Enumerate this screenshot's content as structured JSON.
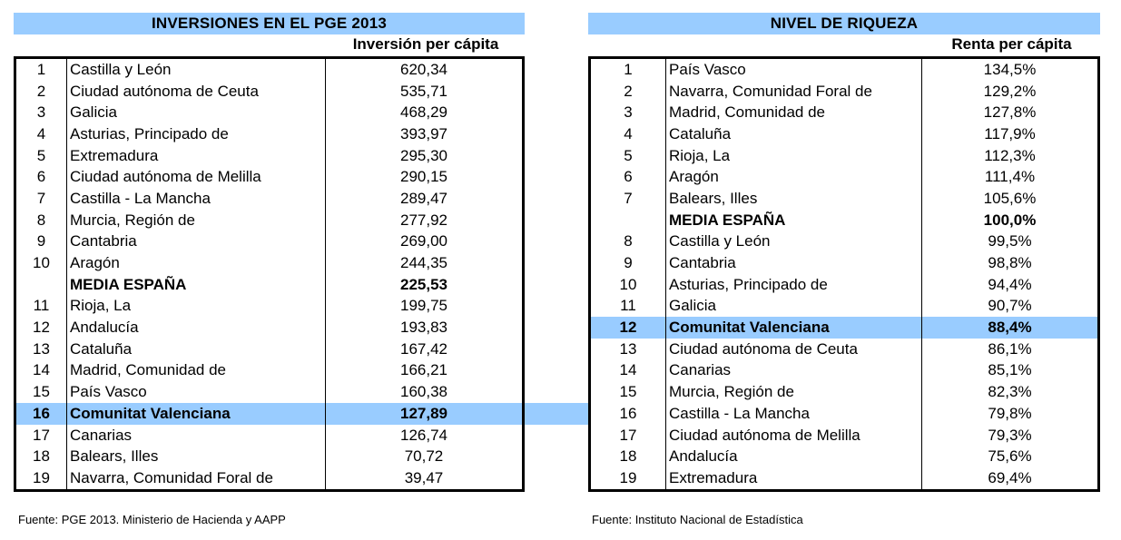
{
  "chart_data": [
    {
      "type": "table",
      "title": "INVERSIONES EN EL PGE 2013",
      "column_header": "Inversión per cápita",
      "rows": [
        {
          "rank": "1",
          "name": "Castilla y León",
          "value": "620,34"
        },
        {
          "rank": "2",
          "name": "Ciudad autónoma de Ceuta",
          "value": "535,71"
        },
        {
          "rank": "3",
          "name": "Galicia",
          "value": "468,29"
        },
        {
          "rank": "4",
          "name": "Asturias, Principado de",
          "value": "393,97"
        },
        {
          "rank": "5",
          "name": "Extremadura",
          "value": "295,30"
        },
        {
          "rank": "6",
          "name": "Ciudad autónoma de Melilla",
          "value": "290,15"
        },
        {
          "rank": "7",
          "name": "Castilla - La Mancha",
          "value": "289,47"
        },
        {
          "rank": "8",
          "name": "Murcia, Región de",
          "value": "277,92"
        },
        {
          "rank": "9",
          "name": "Cantabria",
          "value": "269,00"
        },
        {
          "rank": "10",
          "name": "Aragón",
          "value": "244,35"
        },
        {
          "rank": "",
          "name": "MEDIA ESPAÑA",
          "value": "225,53",
          "style": "bold"
        },
        {
          "rank": "11",
          "name": "Rioja, La",
          "value": "199,75"
        },
        {
          "rank": "12",
          "name": "Andalucía",
          "value": "193,83"
        },
        {
          "rank": "13",
          "name": "Cataluña",
          "value": "167,42"
        },
        {
          "rank": "14",
          "name": "Madrid, Comunidad de",
          "value": "166,21"
        },
        {
          "rank": "15",
          "name": "País Vasco",
          "value": "160,38"
        },
        {
          "rank": "16",
          "name": "Comunitat Valenciana",
          "value": "127,89",
          "style": "highlight"
        },
        {
          "rank": "17",
          "name": "Canarias",
          "value": "126,74"
        },
        {
          "rank": "18",
          "name": "Balears, Illes",
          "value": "70,72"
        },
        {
          "rank": "19",
          "name": "Navarra, Comunidad Foral de",
          "value": "39,47"
        }
      ],
      "source": "Fuente: PGE 2013. Ministerio de Hacienda y AAPP"
    },
    {
      "type": "table",
      "title": "NIVEL DE RIQUEZA",
      "column_header": "Renta per cápita",
      "rows": [
        {
          "rank": "1",
          "name": "País Vasco",
          "value": "134,5%"
        },
        {
          "rank": "2",
          "name": "Navarra, Comunidad Foral de",
          "value": "129,2%"
        },
        {
          "rank": "3",
          "name": "Madrid, Comunidad de",
          "value": "127,8%"
        },
        {
          "rank": "4",
          "name": "Cataluña",
          "value": "117,9%"
        },
        {
          "rank": "5",
          "name": "Rioja, La",
          "value": "112,3%"
        },
        {
          "rank": "6",
          "name": "Aragón",
          "value": "111,4%"
        },
        {
          "rank": "7",
          "name": "Balears, Illes",
          "value": "105,6%"
        },
        {
          "rank": "",
          "name": "MEDIA ESPAÑA",
          "value": "100,0%",
          "style": "bold"
        },
        {
          "rank": "8",
          "name": "Castilla y León",
          "value": "99,5%"
        },
        {
          "rank": "9",
          "name": "Cantabria",
          "value": "98,8%"
        },
        {
          "rank": "10",
          "name": "Asturias, Principado de",
          "value": "94,4%"
        },
        {
          "rank": "11",
          "name": "Galicia",
          "value": "90,7%"
        },
        {
          "rank": "12",
          "name": "Comunitat Valenciana",
          "value": "88,4%",
          "style": "highlight"
        },
        {
          "rank": "13",
          "name": "Ciudad autónoma de Ceuta",
          "value": "86,1%"
        },
        {
          "rank": "14",
          "name": "Canarias",
          "value": "85,1%"
        },
        {
          "rank": "15",
          "name": "Murcia, Región de",
          "value": "82,3%"
        },
        {
          "rank": "16",
          "name": "Castilla - La Mancha",
          "value": "79,8%"
        },
        {
          "rank": "17",
          "name": "Ciudad autónoma de Melilla",
          "value": "79,3%"
        },
        {
          "rank": "18",
          "name": "Andalucía",
          "value": "75,6%"
        },
        {
          "rank": "19",
          "name": "Extremadura",
          "value": "69,4%"
        }
      ],
      "source": "Fuente: Instituto Nacional de Estadística"
    }
  ],
  "colors": {
    "header_band": "#99ccff",
    "highlight_row": "#99ccff",
    "border": "#000000"
  }
}
